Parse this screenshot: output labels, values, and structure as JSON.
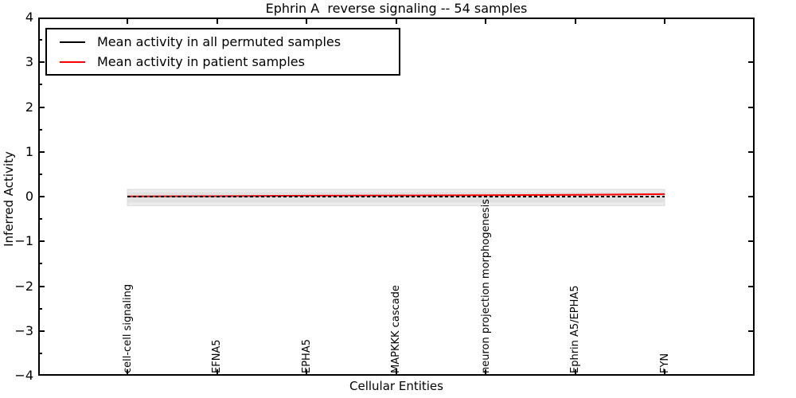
{
  "chart_data": {
    "type": "line",
    "title": "Ephrin A  reverse signaling -- 54 samples",
    "xlabel": "Cellular Entities",
    "ylabel": "Inferred Activity",
    "ylim": [
      -4,
      4
    ],
    "yticks": [
      4,
      3,
      2,
      1,
      0,
      -1,
      -2,
      -3,
      -4
    ],
    "yticklabels": [
      "4",
      "3",
      "2",
      "1",
      "0",
      "−1",
      "−2",
      "−3",
      "−4"
    ],
    "ytick_minor": [
      3.5,
      2.5,
      1.5,
      0.5,
      -0.5,
      -1.5,
      -2.5,
      -3.5
    ],
    "grid": false,
    "legend_position": "upper left",
    "categories": [
      "cell-cell signaling",
      "EFNA5",
      "EPHA5",
      "MAPKKK cascade",
      "neuron projection morphogenesis",
      "Ephrin A5/EPHA5",
      "FYN"
    ],
    "series": [
      {
        "name": "Mean activity in all permuted samples",
        "color": "#000000",
        "line_style": "dashed",
        "values": [
          0,
          0,
          0,
          0,
          0,
          0,
          0
        ]
      },
      {
        "name": "Mean activity in patient samples",
        "color": "#ff0000",
        "line_style": "solid",
        "values": [
          0.005,
          0.01,
          0.02,
          0.025,
          0.03,
          0.04,
          0.055
        ]
      }
    ],
    "band": {
      "outer": {
        "low": -0.2,
        "high": 0.16,
        "color": "#ececec",
        "edge_color": "#d8d8d8"
      },
      "inner": {
        "low": -0.13,
        "high": 0.1,
        "color": "#e1e1e1"
      }
    }
  }
}
